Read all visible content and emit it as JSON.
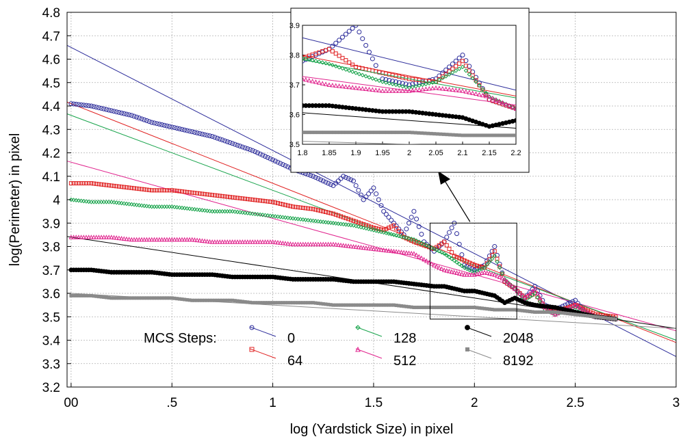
{
  "chart_data": {
    "type": "scatter",
    "xlabel": "log (Yardstick Size) in pixel",
    "ylabel": "log(Perimeter) in pixel",
    "xlim": [
      -0.02,
      3.0
    ],
    "ylim": [
      3.2,
      4.8
    ],
    "x_ticks": [
      0,
      0.5,
      1,
      1.5,
      2,
      2.5,
      3
    ],
    "x_tick_labels": [
      "00",
      ".5",
      "1",
      "1.5",
      "2",
      "2.5",
      "3"
    ],
    "y_ticks": [
      3.2,
      3.3,
      3.4,
      3.5,
      3.6,
      3.7,
      3.8,
      3.9,
      4.0,
      4.1,
      4.2,
      4.3,
      4.4,
      4.5,
      4.6,
      4.7,
      4.8
    ],
    "y_tick_labels": [
      "3.2",
      "3.3",
      "3.4",
      "3.5",
      "3.6",
      "3.7",
      "3.8",
      "3.9",
      "4",
      "4.1",
      "4.2",
      "4.3",
      "4.4",
      "4.5",
      "4.6",
      "4.7",
      "4.8"
    ],
    "grid": true,
    "legend_title": "MCS Steps:",
    "legend_position": "bottom-left",
    "series": [
      {
        "name": "0",
        "marker": "circle-open",
        "color": "#2b2b9a",
        "points": [
          [
            0.0,
            4.41
          ],
          [
            0.1,
            4.4
          ],
          [
            0.2,
            4.38
          ],
          [
            0.3,
            4.36
          ],
          [
            0.4,
            4.33
          ],
          [
            0.5,
            4.31
          ],
          [
            0.6,
            4.29
          ],
          [
            0.7,
            4.27
          ],
          [
            0.8,
            4.24
          ],
          [
            0.9,
            4.21
          ],
          [
            1.0,
            4.17
          ],
          [
            1.05,
            4.15
          ],
          [
            1.1,
            4.13
          ],
          [
            1.2,
            4.1
          ],
          [
            1.25,
            4.08
          ],
          [
            1.3,
            4.06
          ],
          [
            1.35,
            4.1
          ],
          [
            1.4,
            4.08
          ],
          [
            1.45,
            4.0
          ],
          [
            1.5,
            4.05
          ],
          [
            1.55,
            3.95
          ],
          [
            1.6,
            3.9
          ],
          [
            1.65,
            3.85
          ],
          [
            1.7,
            3.95
          ],
          [
            1.75,
            3.82
          ],
          [
            1.8,
            3.78
          ],
          [
            1.85,
            3.82
          ],
          [
            1.9,
            3.9
          ],
          [
            1.95,
            3.72
          ],
          [
            2.0,
            3.7
          ],
          [
            2.05,
            3.72
          ],
          [
            2.1,
            3.8
          ],
          [
            2.15,
            3.65
          ],
          [
            2.2,
            3.62
          ],
          [
            2.25,
            3.58
          ],
          [
            2.3,
            3.63
          ],
          [
            2.35,
            3.55
          ],
          [
            2.4,
            3.53
          ],
          [
            2.5,
            3.57
          ],
          [
            2.55,
            3.52
          ],
          [
            2.6,
            3.5
          ],
          [
            2.7,
            3.49
          ]
        ],
        "fit": {
          "intercept": 4.65,
          "slope": -0.44
        }
      },
      {
        "name": "64",
        "marker": "square-open",
        "color": "#e02020",
        "points": [
          [
            0.0,
            4.07
          ],
          [
            0.1,
            4.07
          ],
          [
            0.2,
            4.06
          ],
          [
            0.3,
            4.05
          ],
          [
            0.4,
            4.04
          ],
          [
            0.5,
            4.04
          ],
          [
            0.6,
            4.03
          ],
          [
            0.7,
            4.02
          ],
          [
            0.8,
            4.01
          ],
          [
            0.9,
            4.0
          ],
          [
            1.0,
            3.99
          ],
          [
            1.1,
            3.97
          ],
          [
            1.2,
            3.96
          ],
          [
            1.3,
            3.94
          ],
          [
            1.4,
            3.91
          ],
          [
            1.5,
            3.88
          ],
          [
            1.55,
            3.87
          ],
          [
            1.6,
            3.89
          ],
          [
            1.65,
            3.84
          ],
          [
            1.7,
            3.82
          ],
          [
            1.8,
            3.79
          ],
          [
            1.85,
            3.82
          ],
          [
            1.9,
            3.76
          ],
          [
            1.95,
            3.74
          ],
          [
            2.0,
            3.72
          ],
          [
            2.05,
            3.71
          ],
          [
            2.1,
            3.78
          ],
          [
            2.15,
            3.65
          ],
          [
            2.2,
            3.62
          ],
          [
            2.25,
            3.58
          ],
          [
            2.3,
            3.6
          ],
          [
            2.35,
            3.54
          ],
          [
            2.4,
            3.52
          ],
          [
            2.5,
            3.55
          ],
          [
            2.6,
            3.51
          ],
          [
            2.7,
            3.5
          ]
        ],
        "fit": {
          "intercept": 4.41,
          "slope": -0.34
        }
      },
      {
        "name": "128",
        "marker": "diamond-open",
        "color": "#16a34a",
        "points": [
          [
            0.0,
            4.0
          ],
          [
            0.1,
            3.99
          ],
          [
            0.2,
            3.99
          ],
          [
            0.3,
            3.98
          ],
          [
            0.4,
            3.97
          ],
          [
            0.5,
            3.97
          ],
          [
            0.6,
            3.96
          ],
          [
            0.7,
            3.95
          ],
          [
            0.8,
            3.95
          ],
          [
            0.9,
            3.94
          ],
          [
            1.0,
            3.93
          ],
          [
            1.1,
            3.92
          ],
          [
            1.2,
            3.91
          ],
          [
            1.3,
            3.9
          ],
          [
            1.4,
            3.89
          ],
          [
            1.5,
            3.87
          ],
          [
            1.6,
            3.85
          ],
          [
            1.7,
            3.83
          ],
          [
            1.8,
            3.79
          ],
          [
            1.85,
            3.77
          ],
          [
            1.9,
            3.74
          ],
          [
            1.95,
            3.71
          ],
          [
            2.0,
            3.69
          ],
          [
            2.05,
            3.71
          ],
          [
            2.1,
            3.76
          ],
          [
            2.15,
            3.66
          ],
          [
            2.2,
            3.62
          ],
          [
            2.25,
            3.57
          ],
          [
            2.3,
            3.6
          ],
          [
            2.35,
            3.53
          ],
          [
            2.4,
            3.51
          ],
          [
            2.5,
            3.54
          ],
          [
            2.6,
            3.5
          ],
          [
            2.7,
            3.49
          ]
        ],
        "fit": {
          "intercept": 4.36,
          "slope": -0.32
        }
      },
      {
        "name": "512",
        "marker": "triangle-open",
        "color": "#e0208c",
        "points": [
          [
            0.0,
            3.84
          ],
          [
            0.1,
            3.84
          ],
          [
            0.2,
            3.84
          ],
          [
            0.3,
            3.83
          ],
          [
            0.4,
            3.83
          ],
          [
            0.5,
            3.83
          ],
          [
            0.6,
            3.83
          ],
          [
            0.7,
            3.82
          ],
          [
            0.8,
            3.82
          ],
          [
            0.9,
            3.82
          ],
          [
            1.0,
            3.82
          ],
          [
            1.1,
            3.81
          ],
          [
            1.2,
            3.81
          ],
          [
            1.3,
            3.81
          ],
          [
            1.4,
            3.8
          ],
          [
            1.5,
            3.79
          ],
          [
            1.6,
            3.78
          ],
          [
            1.7,
            3.77
          ],
          [
            1.8,
            3.72
          ],
          [
            1.85,
            3.7
          ],
          [
            1.9,
            3.69
          ],
          [
            1.95,
            3.68
          ],
          [
            2.0,
            3.68
          ],
          [
            2.05,
            3.69
          ],
          [
            2.1,
            3.68
          ],
          [
            2.15,
            3.66
          ],
          [
            2.2,
            3.62
          ],
          [
            2.25,
            3.58
          ],
          [
            2.3,
            3.62
          ],
          [
            2.35,
            3.54
          ],
          [
            2.4,
            3.51
          ],
          [
            2.5,
            3.55
          ],
          [
            2.6,
            3.5
          ],
          [
            2.7,
            3.49
          ]
        ],
        "fit": {
          "intercept": 4.16,
          "slope": -0.24
        }
      },
      {
        "name": "2048",
        "marker": "circle-filled",
        "color": "#000000",
        "points": [
          [
            0.0,
            3.7
          ],
          [
            0.1,
            3.7
          ],
          [
            0.2,
            3.69
          ],
          [
            0.3,
            3.69
          ],
          [
            0.4,
            3.69
          ],
          [
            0.5,
            3.68
          ],
          [
            0.6,
            3.68
          ],
          [
            0.7,
            3.68
          ],
          [
            0.8,
            3.67
          ],
          [
            0.9,
            3.67
          ],
          [
            1.0,
            3.67
          ],
          [
            1.1,
            3.66
          ],
          [
            1.2,
            3.66
          ],
          [
            1.3,
            3.66
          ],
          [
            1.4,
            3.65
          ],
          [
            1.5,
            3.65
          ],
          [
            1.6,
            3.65
          ],
          [
            1.7,
            3.64
          ],
          [
            1.8,
            3.63
          ],
          [
            1.85,
            3.63
          ],
          [
            1.9,
            3.62
          ],
          [
            1.95,
            3.61
          ],
          [
            2.0,
            3.61
          ],
          [
            2.05,
            3.6
          ],
          [
            2.1,
            3.59
          ],
          [
            2.15,
            3.56
          ],
          [
            2.2,
            3.58
          ],
          [
            2.25,
            3.56
          ],
          [
            2.3,
            3.55
          ],
          [
            2.4,
            3.54
          ],
          [
            2.5,
            3.52
          ],
          [
            2.6,
            3.5
          ],
          [
            2.7,
            3.49
          ]
        ],
        "fit": {
          "intercept": 3.84,
          "slope": -0.13
        }
      },
      {
        "name": "8192",
        "marker": "square-filled",
        "color": "#8a8a8a",
        "points": [
          [
            0.0,
            3.59
          ],
          [
            0.1,
            3.59
          ],
          [
            0.2,
            3.58
          ],
          [
            0.3,
            3.58
          ],
          [
            0.4,
            3.58
          ],
          [
            0.5,
            3.58
          ],
          [
            0.6,
            3.57
          ],
          [
            0.7,
            3.57
          ],
          [
            0.8,
            3.57
          ],
          [
            0.9,
            3.56
          ],
          [
            1.0,
            3.56
          ],
          [
            1.1,
            3.56
          ],
          [
            1.2,
            3.56
          ],
          [
            1.3,
            3.55
          ],
          [
            1.4,
            3.55
          ],
          [
            1.5,
            3.55
          ],
          [
            1.6,
            3.55
          ],
          [
            1.7,
            3.54
          ],
          [
            1.8,
            3.54
          ],
          [
            1.9,
            3.54
          ],
          [
            2.0,
            3.54
          ],
          [
            2.1,
            3.53
          ],
          [
            2.2,
            3.53
          ],
          [
            2.3,
            3.52
          ],
          [
            2.4,
            3.52
          ],
          [
            2.5,
            3.51
          ],
          [
            2.6,
            3.5
          ],
          [
            2.7,
            3.49
          ]
        ],
        "fit": {
          "intercept": 3.6,
          "slope": -0.05
        }
      }
    ],
    "inset": {
      "xlim": [
        1.8,
        2.2
      ],
      "ylim": [
        3.5,
        3.9
      ],
      "x_tick_labels": [
        "1.8",
        "1.85",
        "1.9",
        "1.95",
        "2",
        "2.05",
        "2.1",
        "2.15",
        "2.2"
      ],
      "y_tick_labels": [
        "3.5",
        "3.6",
        "3.7",
        "3.8",
        "3.9"
      ],
      "source_region": {
        "x": [
          1.78,
          2.21
        ],
        "y": [
          3.49,
          3.9
        ]
      }
    }
  }
}
